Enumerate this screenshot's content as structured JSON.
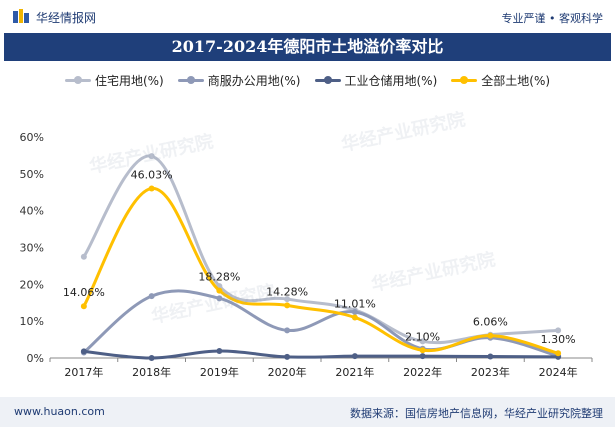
{
  "header": {
    "brand": "华经情报网",
    "tagline": "专业严谨 • 客观科学"
  },
  "title": "2017-2024年德阳市土地溢价率对比",
  "footer": {
    "url": "www.huaon.com",
    "source": "数据来源：国信房地产信息网，华经产业研究院整理"
  },
  "watermark": "华经产业研究院",
  "colors": {
    "title_bg": "#1f3f7a",
    "residential": "#b7bdcc",
    "commercial": "#8e99b7",
    "industrial": "#4e5f86",
    "total": "#ffc000"
  },
  "chart_data": {
    "type": "line",
    "categories": [
      "2017年",
      "2018年",
      "2019年",
      "2020年",
      "2021年",
      "2022年",
      "2023年",
      "2024年"
    ],
    "ylim": [
      0,
      60
    ],
    "yticks": [
      "0%",
      "10%",
      "20%",
      "30%",
      "40%",
      "50%",
      "60%"
    ],
    "series": [
      {
        "name": "住宅用地(%)",
        "color": "#b7bdcc",
        "values": [
          27.5,
          54.8,
          19.5,
          16.0,
          13.0,
          4.5,
          6.3,
          7.5
        ]
      },
      {
        "name": "商服办公用地(%)",
        "color": "#8e99b7",
        "values": [
          1.5,
          16.8,
          16.2,
          7.5,
          12.5,
          2.5,
          5.5,
          0.5
        ]
      },
      {
        "name": "工业仓储用地(%)",
        "color": "#4e5f86",
        "values": [
          1.8,
          0.0,
          1.9,
          0.3,
          0.5,
          0.5,
          0.4,
          0.3
        ]
      },
      {
        "name": "全部土地(%)",
        "color": "#ffc000",
        "values": [
          14.06,
          46.03,
          18.28,
          14.28,
          11.01,
          2.1,
          6.06,
          1.3
        ],
        "labels": [
          "14.06%",
          "46.03%",
          "18.28%",
          "14.28%",
          "11.01%",
          "2.10%",
          "6.06%",
          "1.30%"
        ]
      }
    ]
  }
}
